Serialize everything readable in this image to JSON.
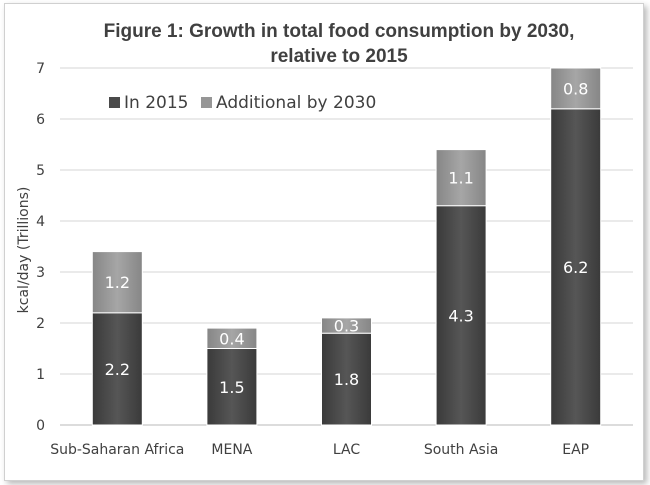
{
  "chart_data": {
    "type": "bar",
    "stacked": true,
    "title_line1": "Figure 1: Growth in total food consumption by 2030,",
    "title_line2": "relative to 2015",
    "xlabel": "",
    "ylabel": "kcal/day (Trillions)",
    "ylim": [
      0,
      7
    ],
    "yticks": [
      "0",
      "1",
      "2",
      "3",
      "4",
      "5",
      "6",
      "7"
    ],
    "grid": true,
    "legend_position": "top-left",
    "categories": [
      "Sub-Saharan Africa",
      "MENA",
      "LAC",
      "South Asia",
      "EAP"
    ],
    "series": [
      {
        "name": "In 2015",
        "values": [
          2.2,
          1.5,
          1.8,
          4.3,
          6.2
        ],
        "labels": [
          "2.2",
          "1.5",
          "1.8",
          "4.3",
          "6.2"
        ],
        "color": "#4a4a4a"
      },
      {
        "name": "Additional by 2030",
        "values": [
          1.2,
          0.4,
          0.3,
          1.1,
          0.8
        ],
        "labels": [
          "1.2",
          "0.4",
          "0.3",
          "1.1",
          "0.8"
        ],
        "color": "#969696"
      }
    ]
  }
}
